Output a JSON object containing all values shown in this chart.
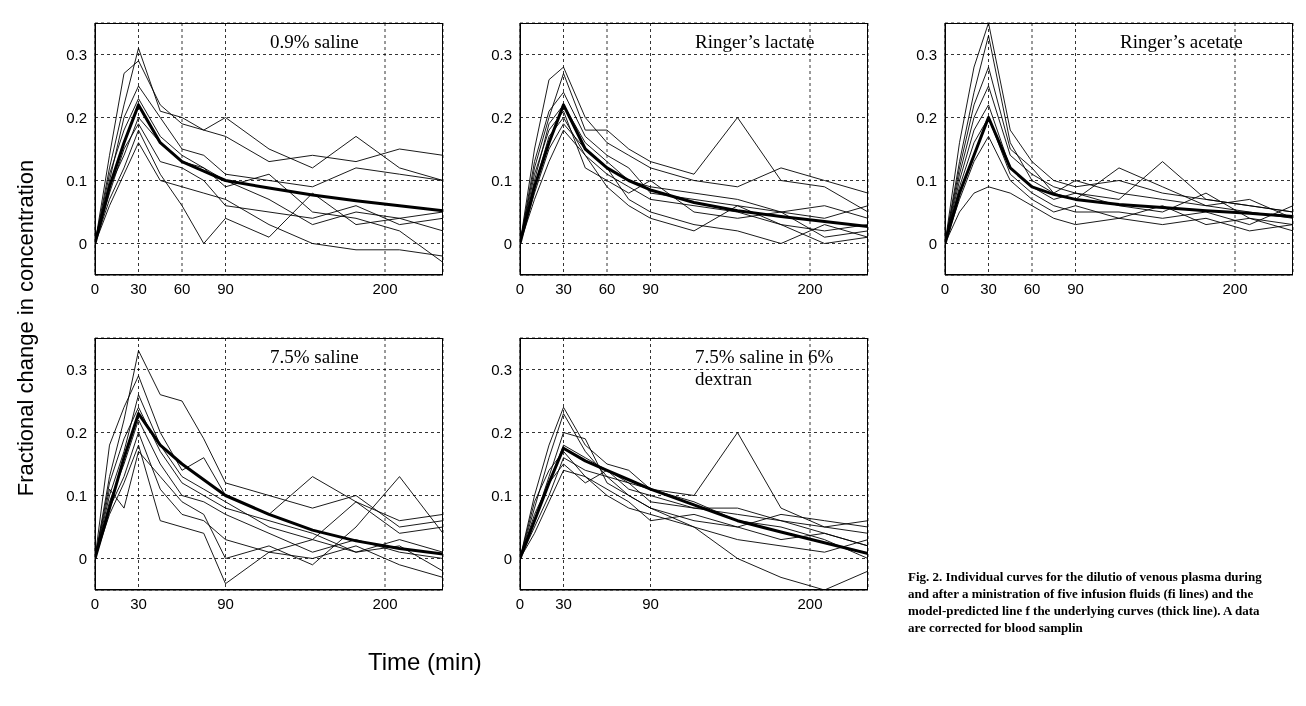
{
  "chart_data": [
    {
      "type": "line",
      "title": "0.9% saline",
      "ylabel": "Fractional change in concentration",
      "x": [
        0,
        10,
        20,
        30,
        45,
        60,
        75,
        90,
        120,
        150,
        180,
        210,
        240
      ],
      "xlim": [
        0,
        240
      ],
      "xticks": [
        0,
        30,
        60,
        90,
        200
      ],
      "ylim": [
        -0.05,
        0.35
      ],
      "yticks": [
        0,
        0.1,
        0.2,
        0.3
      ],
      "grid": true,
      "line_style": "solid",
      "marker": "none",
      "series": [
        {
          "color": "#000000",
          "values": [
            0,
            0.14,
            0.27,
            0.29,
            0.22,
            0.19,
            0.18,
            0.17,
            0.13,
            0.14,
            0.13,
            0.15,
            0.14
          ]
        },
        {
          "color": "#000000",
          "values": [
            0,
            0.12,
            0.22,
            0.31,
            0.21,
            0.2,
            0.18,
            0.2,
            0.15,
            0.12,
            0.17,
            0.12,
            0.1
          ]
        },
        {
          "color": "#000000",
          "values": [
            0,
            0.1,
            0.2,
            0.25,
            0.2,
            0.15,
            0.14,
            0.11,
            0.1,
            0.09,
            0.12,
            0.11,
            0.1
          ]
        },
        {
          "color": "#000000",
          "values": [
            0,
            0.11,
            0.18,
            0.23,
            0.17,
            0.14,
            0.12,
            0.1,
            0.07,
            0.03,
            0.05,
            0.04,
            0.05
          ]
        },
        {
          "color": "#000000",
          "values": [
            0,
            0.08,
            0.15,
            0.19,
            0.13,
            0.12,
            0.1,
            0.06,
            0.05,
            0.04,
            0.06,
            0.03,
            0.04
          ]
        },
        {
          "color": "#000000",
          "values": [
            0,
            0.07,
            0.12,
            0.18,
            0.11,
            0.06,
            0.0,
            0.04,
            0.01,
            0.08,
            0.03,
            0.04,
            0.02
          ]
        },
        {
          "color": "#000000",
          "values": [
            0,
            0.06,
            0.11,
            0.16,
            0.1,
            0.09,
            0.08,
            0.07,
            0.03,
            0.0,
            -0.01,
            -0.01,
            -0.02
          ]
        },
        {
          "color": "#000000",
          "values": [
            0,
            0.09,
            0.14,
            0.2,
            0.16,
            0.13,
            0.12,
            0.09,
            0.11,
            0.05,
            0.04,
            0.02,
            -0.03
          ]
        },
        {
          "color": "#000000",
          "values": [
            0,
            0.09,
            0.16,
            0.22,
            0.16,
            0.13,
            0.115,
            0.1,
            0.088,
            0.077,
            0.068,
            0.06,
            0.052
          ]
        }
      ]
    },
    {
      "type": "line",
      "title": "Ringer’s lactate",
      "x": [
        0,
        10,
        20,
        30,
        45,
        60,
        75,
        90,
        120,
        150,
        180,
        210,
        240
      ],
      "xlim": [
        0,
        240
      ],
      "xticks": [
        0,
        30,
        60,
        90,
        200
      ],
      "ylim": [
        -0.05,
        0.35
      ],
      "yticks": [
        0,
        0.1,
        0.2,
        0.3
      ],
      "grid": true,
      "line_style": "solid",
      "marker": "none",
      "series": [
        {
          "color": "#000000",
          "values": [
            0,
            0.15,
            0.26,
            0.28,
            0.2,
            0.16,
            0.14,
            0.12,
            0.1,
            0.09,
            0.12,
            0.1,
            0.08
          ]
        },
        {
          "color": "#000000",
          "values": [
            0,
            0.12,
            0.2,
            0.27,
            0.18,
            0.18,
            0.15,
            0.13,
            0.11,
            0.2,
            0.1,
            0.09,
            0.05
          ]
        },
        {
          "color": "#000000",
          "values": [
            0,
            0.1,
            0.19,
            0.22,
            0.16,
            0.13,
            0.1,
            0.09,
            0.08,
            0.07,
            0.05,
            0.06,
            0.04
          ]
        },
        {
          "color": "#000000",
          "values": [
            0,
            0.09,
            0.17,
            0.2,
            0.14,
            0.11,
            0.09,
            0.07,
            0.06,
            0.05,
            0.03,
            0.02,
            0.03
          ]
        },
        {
          "color": "#000000",
          "values": [
            0,
            0.11,
            0.18,
            0.21,
            0.12,
            0.1,
            0.08,
            0.1,
            0.05,
            0.04,
            0.05,
            0.01,
            0.02
          ]
        },
        {
          "color": "#000000",
          "values": [
            0,
            0.08,
            0.15,
            0.19,
            0.15,
            0.12,
            0.07,
            0.05,
            0.03,
            0.02,
            0.0,
            0.03,
            0.01
          ]
        },
        {
          "color": "#000000",
          "values": [
            0,
            0.13,
            0.21,
            0.24,
            0.17,
            0.14,
            0.12,
            0.08,
            0.07,
            0.06,
            0.05,
            0.04,
            0.06
          ]
        },
        {
          "color": "#000000",
          "values": [
            0,
            0.07,
            0.13,
            0.18,
            0.14,
            0.09,
            0.06,
            0.04,
            0.02,
            0.06,
            0.03,
            0.0,
            0.01
          ]
        },
        {
          "color": "#000000",
          "values": [
            0,
            0.09,
            0.16,
            0.22,
            0.15,
            0.12,
            0.1,
            0.085,
            0.065,
            0.052,
            0.043,
            0.035,
            0.027
          ]
        }
      ]
    },
    {
      "type": "line",
      "title": "Ringer’s acetate",
      "x": [
        0,
        10,
        20,
        30,
        45,
        60,
        75,
        90,
        120,
        150,
        180,
        210,
        240
      ],
      "xlim": [
        0,
        240
      ],
      "xticks": [
        0,
        30,
        60,
        90,
        200
      ],
      "ylim": [
        -0.05,
        0.35
      ],
      "yticks": [
        0,
        0.1,
        0.2,
        0.3
      ],
      "grid": true,
      "line_style": "solid",
      "marker": "none",
      "series": [
        {
          "color": "#000000",
          "values": [
            0,
            0.16,
            0.28,
            0.35,
            0.18,
            0.13,
            0.1,
            0.09,
            0.1,
            0.08,
            0.07,
            0.06,
            0.05
          ]
        },
        {
          "color": "#000000",
          "values": [
            0,
            0.13,
            0.24,
            0.33,
            0.16,
            0.1,
            0.08,
            0.07,
            0.12,
            0.09,
            0.06,
            0.05,
            0.04
          ]
        },
        {
          "color": "#000000",
          "values": [
            0,
            0.11,
            0.2,
            0.25,
            0.14,
            0.11,
            0.09,
            0.08,
            0.07,
            0.13,
            0.07,
            0.06,
            0.05
          ]
        },
        {
          "color": "#000000",
          "values": [
            0,
            0.1,
            0.18,
            0.22,
            0.12,
            0.09,
            0.07,
            0.08,
            0.06,
            0.05,
            0.08,
            0.04,
            0.03
          ]
        },
        {
          "color": "#000000",
          "values": [
            0,
            0.09,
            0.16,
            0.2,
            0.11,
            0.08,
            0.06,
            0.05,
            0.05,
            0.04,
            0.05,
            0.03,
            0.06
          ]
        },
        {
          "color": "#000000",
          "values": [
            0,
            0.07,
            0.13,
            0.17,
            0.1,
            0.07,
            0.05,
            0.06,
            0.04,
            0.03,
            0.04,
            0.02,
            0.03
          ]
        },
        {
          "color": "#000000",
          "values": [
            0,
            0.05,
            0.08,
            0.09,
            0.08,
            0.06,
            0.04,
            0.03,
            0.04,
            0.06,
            0.03,
            0.04,
            0.02
          ]
        },
        {
          "color": "#000000",
          "values": [
            0,
            0.12,
            0.22,
            0.28,
            0.15,
            0.12,
            0.08,
            0.1,
            0.08,
            0.07,
            0.06,
            0.07,
            0.04
          ]
        },
        {
          "color": "#000000",
          "values": [
            0,
            0.08,
            0.14,
            0.2,
            0.12,
            0.09,
            0.078,
            0.07,
            0.062,
            0.057,
            0.052,
            0.048,
            0.043
          ]
        }
      ]
    },
    {
      "type": "line",
      "title": "7.5% saline",
      "xlabel": "Time (min)",
      "x": [
        0,
        10,
        20,
        30,
        45,
        60,
        75,
        90,
        120,
        150,
        180,
        210,
        240
      ],
      "xlim": [
        0,
        240
      ],
      "xticks": [
        0,
        30,
        90,
        200
      ],
      "ylim": [
        -0.05,
        0.35
      ],
      "yticks": [
        0,
        0.1,
        0.2,
        0.3
      ],
      "grid": true,
      "line_style": "solid",
      "marker": "none",
      "series": [
        {
          "color": "#000000",
          "values": [
            0,
            0.18,
            0.24,
            0.29,
            0.2,
            0.14,
            0.16,
            0.1,
            0.07,
            0.13,
            0.09,
            0.06,
            0.07
          ]
        },
        {
          "color": "#000000",
          "values": [
            0,
            0.13,
            0.22,
            0.33,
            0.26,
            0.25,
            0.19,
            0.12,
            0.1,
            0.08,
            0.1,
            0.05,
            0.06
          ]
        },
        {
          "color": "#000000",
          "values": [
            0,
            0.1,
            0.17,
            0.26,
            0.18,
            0.13,
            0.11,
            0.09,
            0.05,
            0.03,
            0.09,
            0.04,
            0.05
          ]
        },
        {
          "color": "#000000",
          "values": [
            0,
            0.09,
            0.15,
            0.22,
            0.15,
            0.1,
            0.09,
            0.07,
            0.04,
            0.01,
            0.03,
            0.01,
            0.0
          ]
        },
        {
          "color": "#000000",
          "values": [
            0,
            0.08,
            0.13,
            0.2,
            0.11,
            0.07,
            0.06,
            0.03,
            0.01,
            0.03,
            0.01,
            0.02,
            -0.02
          ]
        },
        {
          "color": "#000000",
          "values": [
            0,
            0.11,
            0.08,
            0.17,
            0.13,
            0.09,
            0.07,
            0.0,
            0.02,
            -0.01,
            0.05,
            0.13,
            0.04
          ]
        },
        {
          "color": "#000000",
          "values": [
            0,
            0.07,
            0.12,
            0.18,
            0.06,
            0.05,
            0.04,
            -0.04,
            0.01,
            0.0,
            0.02,
            -0.01,
            -0.03
          ]
        },
        {
          "color": "#000000",
          "values": [
            0,
            0.12,
            0.19,
            0.24,
            0.17,
            0.12,
            0.1,
            0.08,
            0.06,
            0.04,
            0.01,
            0.03,
            0.01
          ]
        },
        {
          "color": "#000000",
          "values": [
            0,
            0.08,
            0.16,
            0.23,
            0.18,
            0.15,
            0.125,
            0.1,
            0.07,
            0.045,
            0.028,
            0.016,
            0.007
          ]
        }
      ]
    },
    {
      "type": "line",
      "title": "7.5% saline in 6% dextran",
      "annotations": [
        "Fig. 2. Individual curves for the dilutio of venous plasma during and after a ministration of five infusion fluids (fi lines) and the model-predicted line f the underlying curves (thick line). A data are corrected for blood samplin"
      ],
      "x": [
        0,
        10,
        20,
        30,
        45,
        60,
        75,
        90,
        120,
        150,
        180,
        210,
        240
      ],
      "xlim": [
        0,
        240
      ],
      "xticks": [
        0,
        30,
        90,
        200
      ],
      "ylim": [
        -0.05,
        0.35
      ],
      "yticks": [
        0,
        0.1,
        0.2,
        0.3
      ],
      "grid": true,
      "line_style": "solid",
      "marker": "none",
      "series": [
        {
          "color": "#000000",
          "values": [
            0,
            0.1,
            0.18,
            0.24,
            0.18,
            0.15,
            0.14,
            0.11,
            0.1,
            0.2,
            0.08,
            0.05,
            0.04
          ]
        },
        {
          "color": "#000000",
          "values": [
            0,
            0.08,
            0.16,
            0.23,
            0.17,
            0.13,
            0.12,
            0.09,
            0.08,
            0.07,
            0.06,
            0.04,
            0.02
          ]
        },
        {
          "color": "#000000",
          "values": [
            0,
            0.06,
            0.13,
            0.2,
            0.19,
            0.12,
            0.1,
            0.08,
            0.06,
            0.05,
            0.07,
            0.06,
            0.05
          ]
        },
        {
          "color": "#000000",
          "values": [
            0,
            0.07,
            0.12,
            0.18,
            0.16,
            0.14,
            0.12,
            0.11,
            0.09,
            0.06,
            0.05,
            0.03,
            0.0
          ]
        },
        {
          "color": "#000000",
          "values": [
            0,
            0.05,
            0.1,
            0.16,
            0.14,
            0.13,
            0.1,
            0.08,
            0.05,
            0.0,
            -0.03,
            -0.05,
            -0.02
          ]
        },
        {
          "color": "#000000",
          "values": [
            0,
            0.09,
            0.14,
            0.17,
            0.13,
            0.11,
            0.09,
            0.06,
            0.07,
            0.05,
            0.03,
            0.04,
            0.02
          ]
        },
        {
          "color": "#000000",
          "values": [
            0,
            0.06,
            0.12,
            0.15,
            0.12,
            0.14,
            0.11,
            0.1,
            0.08,
            0.08,
            0.06,
            0.05,
            0.06
          ]
        },
        {
          "color": "#000000",
          "values": [
            0,
            0.04,
            0.09,
            0.14,
            0.13,
            0.1,
            0.08,
            0.07,
            0.05,
            0.03,
            0.02,
            0.01,
            0.03
          ]
        },
        {
          "color": "#000000",
          "values": [
            0,
            0.06,
            0.12,
            0.175,
            0.155,
            0.14,
            0.125,
            0.11,
            0.085,
            0.06,
            0.042,
            0.025,
            0.008
          ]
        }
      ]
    }
  ]
}
